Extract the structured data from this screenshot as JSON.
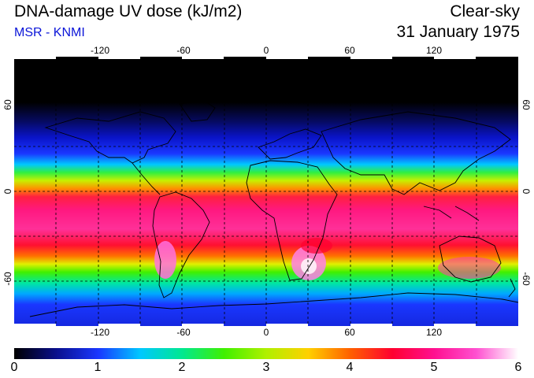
{
  "header": {
    "title": "DNA-damage UV dose (kJ/m2)",
    "source": "MSR - KNMI",
    "condition": "Clear-sky",
    "date": "31 January 1975"
  },
  "colors": {
    "source_text": "#0a14d8",
    "colorbar": [
      "#000000",
      "#0a0f8c",
      "#1a37ff",
      "#00c8ff",
      "#00e890",
      "#40f000",
      "#b0f000",
      "#ffd000",
      "#ff6000",
      "#ff0030",
      "#ff1090",
      "#ff50d0",
      "#ffffff"
    ]
  },
  "map": {
    "projection": "equirectangular",
    "lon_ticks": [
      "-120",
      "-60",
      "0",
      "60",
      "120"
    ],
    "lat_ticks": [
      "60",
      "0",
      "-60"
    ],
    "lon_range": [
      -180,
      180
    ],
    "lat_range": [
      -90,
      90
    ]
  },
  "colorbar": {
    "min": 0,
    "max": 6,
    "labels": [
      "0",
      "1",
      "2",
      "3",
      "4",
      "5",
      "6"
    ]
  }
}
